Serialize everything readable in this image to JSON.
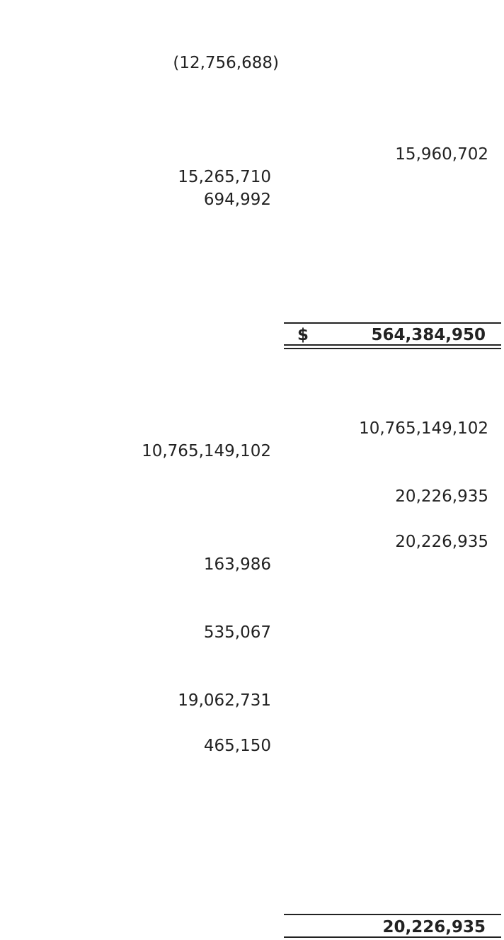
{
  "rows": {
    "r1_left": "(12,756,688)",
    "r2_right": "15,960,702",
    "r3_left": "15,265,710",
    "r4_left": "694,992",
    "total1_currency": "$",
    "total1": "564,384,950",
    "r5_right": "10,765,149,102",
    "r6_left": "10,765,149,102",
    "r7_right": "20,226,935",
    "r8_right": "20,226,935",
    "r9_left": "163,986",
    "r10_left": "535,067",
    "r11_left": "19,062,731",
    "r12_left": "465,150",
    "total2": "20,226,935"
  }
}
